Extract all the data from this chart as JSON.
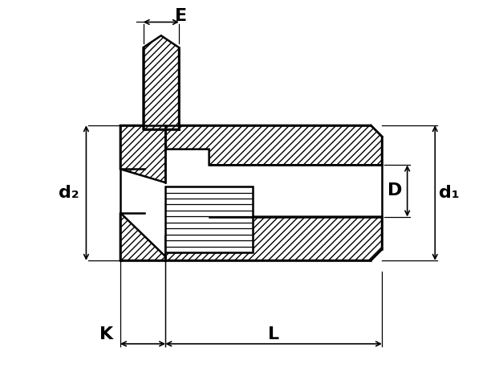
{
  "background_color": "#ffffff",
  "line_color": "#000000",
  "hatch_color": "#000000",
  "figure_width": 6.22,
  "figure_height": 4.74,
  "dpi": 100,
  "labels": {
    "E": "E",
    "d2": "d₂",
    "d1": "d₁",
    "D": "D",
    "K": "K",
    "L": "L"
  }
}
